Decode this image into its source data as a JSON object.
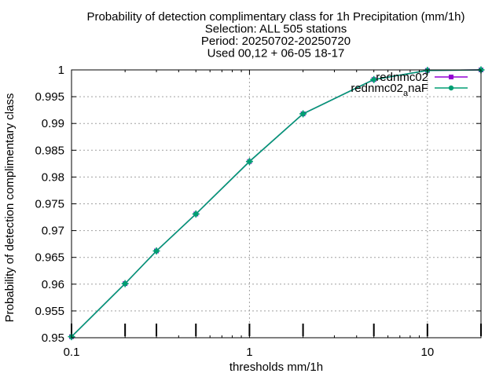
{
  "chart_data": {
    "type": "line",
    "title_lines": [
      "Probability of detection complimentary class  for 1h Precipitation (mm/1h)",
      "Selection: ALL    505 stations",
      "Period: 20250702-20250720",
      "Used 00,12 + 06-05 18-17"
    ],
    "xlabel": "thresholds mm/1h",
    "ylabel": "Probability of detection complimentary class",
    "x_scale": "log",
    "xlim": [
      0.1,
      20
    ],
    "ylim": [
      0.95,
      1.0
    ],
    "x_ticks": [
      {
        "value": 0.1,
        "label": "0.1"
      },
      {
        "value": 1,
        "label": "1"
      },
      {
        "value": 10,
        "label": "10"
      }
    ],
    "y_ticks": [
      {
        "value": 0.95,
        "label": "0.95"
      },
      {
        "value": 0.955,
        "label": "0.955"
      },
      {
        "value": 0.96,
        "label": "0.96"
      },
      {
        "value": 0.965,
        "label": "0.965"
      },
      {
        "value": 0.97,
        "label": "0.97"
      },
      {
        "value": 0.975,
        "label": "0.975"
      },
      {
        "value": 0.98,
        "label": "0.98"
      },
      {
        "value": 0.985,
        "label": "0.985"
      },
      {
        "value": 0.99,
        "label": "0.99"
      },
      {
        "value": 0.995,
        "label": "0.995"
      },
      {
        "value": 1,
        "label": "1"
      }
    ],
    "grid": true,
    "legend_position": "top-right",
    "x": [
      0.1,
      0.2,
      0.3,
      0.5,
      1,
      2,
      5,
      10,
      20
    ],
    "series": [
      {
        "name": "rednmc02",
        "color": "#9400d3",
        "values": [
          0.9502,
          0.9601,
          0.9662,
          0.9731,
          0.9829,
          0.9918,
          0.9982,
          0.9999,
          1.0
        ]
      },
      {
        "name": "rednmc02",
        "name_subscript": "a",
        "name_suffix": "naF",
        "color": "#009e73",
        "values": [
          0.9502,
          0.9601,
          0.9662,
          0.9731,
          0.9829,
          0.9918,
          0.9982,
          0.9999,
          1.0
        ]
      }
    ],
    "observation_markers_x": [
      0.1,
      0.2,
      0.3,
      0.5,
      1,
      2,
      5,
      10,
      20
    ]
  }
}
